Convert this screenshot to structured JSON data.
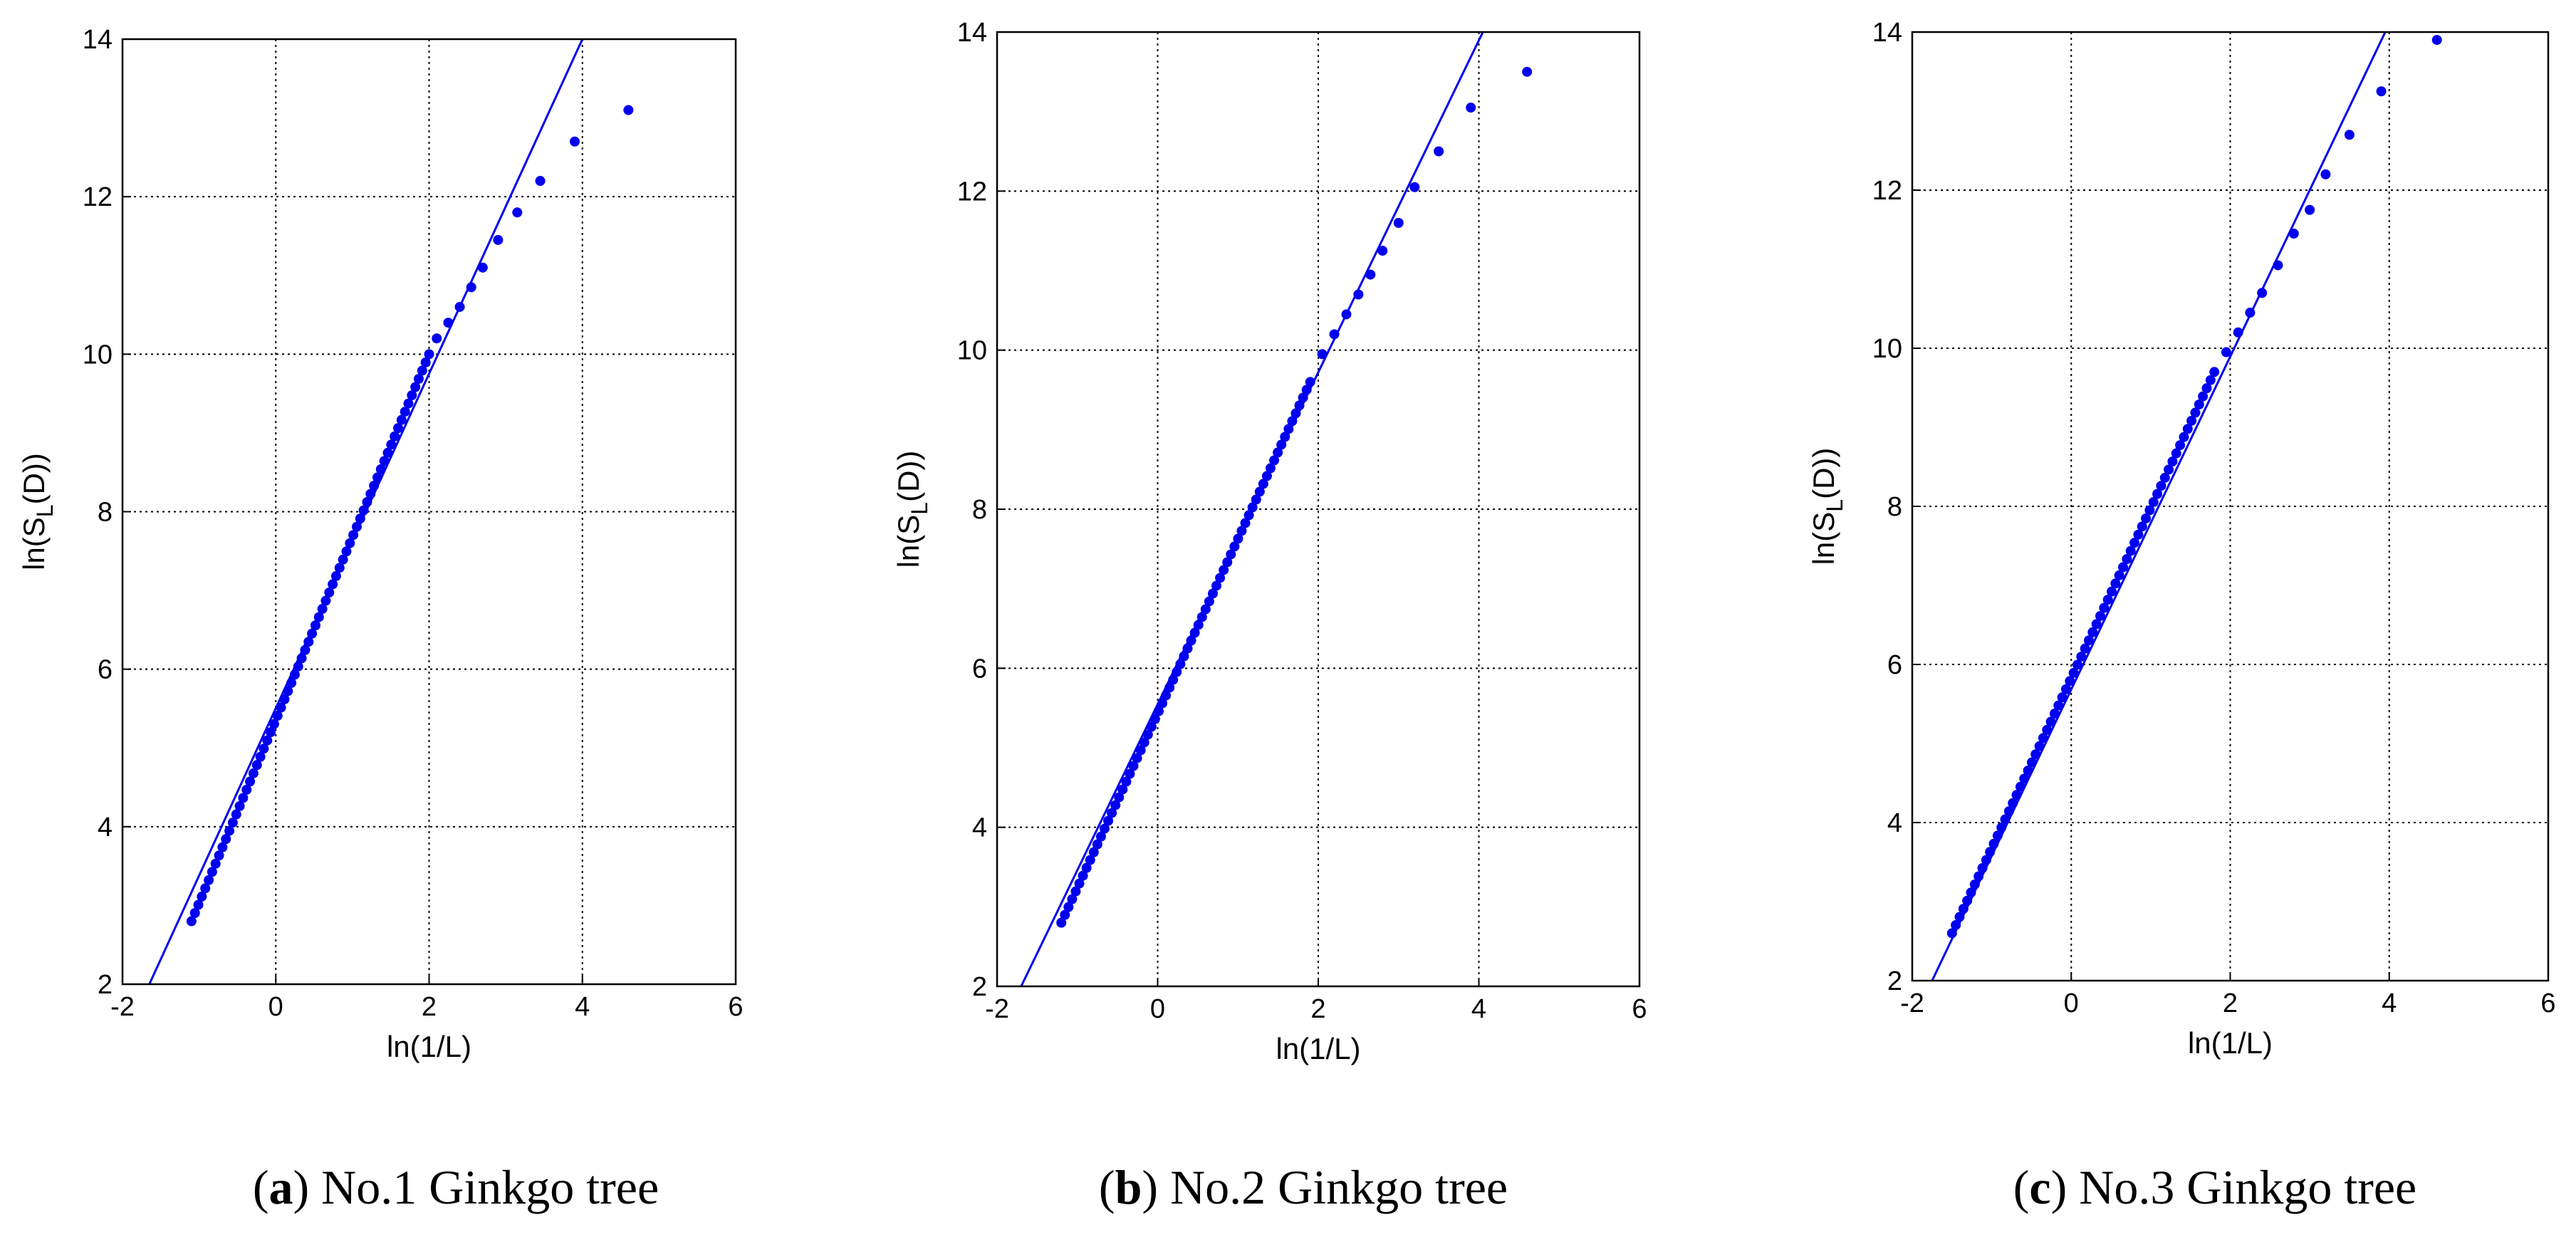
{
  "chart_data": [
    {
      "type": "scatter",
      "caption_letter": "a",
      "caption_text": "No.1 Ginkgo tree",
      "xlabel": "ln(1/L)",
      "ylabel_main": "ln(S",
      "ylabel_sub": "L",
      "ylabel_tail": "(D))",
      "xlim": [
        -2,
        6
      ],
      "ylim": [
        2,
        14
      ],
      "xticks": [
        "-2",
        "0",
        "2",
        "4",
        "6"
      ],
      "yticks": [
        "2",
        "4",
        "6",
        "8",
        "10",
        "12",
        "14"
      ],
      "grid": true,
      "color": "#0000ee",
      "fit_line": {
        "x0": -1.65,
        "y0": 2.0,
        "x1": 4.0,
        "y1": 14.0
      },
      "points_dense": {
        "x_start": -1.1,
        "x_end": 2.0,
        "y_start": 2.8,
        "y_end": 10.0,
        "count": 70
      },
      "points_sparse": [
        [
          2.1,
          10.2
        ],
        [
          2.25,
          10.4
        ],
        [
          2.4,
          10.6
        ],
        [
          2.55,
          10.85
        ],
        [
          2.7,
          11.1
        ],
        [
          2.9,
          11.45
        ],
        [
          3.15,
          11.8
        ],
        [
          3.45,
          12.2
        ],
        [
          3.9,
          12.7
        ],
        [
          4.6,
          13.1
        ]
      ]
    },
    {
      "type": "scatter",
      "caption_letter": "b",
      "caption_text": "No.2 Ginkgo tree",
      "xlabel": "ln(1/L)",
      "ylabel_main": "ln(S",
      "ylabel_sub": "L",
      "ylabel_tail": "(D))",
      "xlim": [
        -2,
        6
      ],
      "ylim": [
        2,
        14
      ],
      "xticks": [
        "-2",
        "0",
        "2",
        "4",
        "6"
      ],
      "yticks": [
        "2",
        "4",
        "6",
        "8",
        "10",
        "12",
        "14"
      ],
      "grid": true,
      "color": "#0000ee",
      "fit_line": {
        "x0": -1.7,
        "y0": 2.0,
        "x1": 4.05,
        "y1": 14.0
      },
      "points_dense": {
        "x_start": -1.2,
        "x_end": 1.9,
        "y_start": 2.8,
        "y_end": 9.6,
        "count": 70
      },
      "points_sparse": [
        [
          2.05,
          9.95
        ],
        [
          2.2,
          10.2
        ],
        [
          2.35,
          10.45
        ],
        [
          2.5,
          10.7
        ],
        [
          2.65,
          10.95
        ],
        [
          2.8,
          11.25
        ],
        [
          3.0,
          11.6
        ],
        [
          3.2,
          12.05
        ],
        [
          3.5,
          12.5
        ],
        [
          3.9,
          13.05
        ],
        [
          4.6,
          13.5
        ]
      ]
    },
    {
      "type": "scatter",
      "caption_letter": "c",
      "caption_text": "No.3 Ginkgo tree",
      "xlabel": "ln(1/L)",
      "ylabel_main": "ln(S",
      "ylabel_sub": "L",
      "ylabel_tail": "(D))",
      "xlim": [
        -2,
        6
      ],
      "ylim": [
        2,
        14
      ],
      "xticks": [
        "-2",
        "0",
        "2",
        "4",
        "6"
      ],
      "yticks": [
        "2",
        "4",
        "6",
        "8",
        "10",
        "12",
        "14"
      ],
      "grid": true,
      "color": "#0000ee",
      "fit_line": {
        "x0": -1.75,
        "y0": 2.0,
        "x1": 3.95,
        "y1": 14.0
      },
      "points_dense": {
        "x_start": -1.5,
        "x_end": 1.8,
        "y_start": 2.6,
        "y_end": 9.7,
        "count": 70
      },
      "points_sparse": [
        [
          1.95,
          9.95
        ],
        [
          2.1,
          10.2
        ],
        [
          2.25,
          10.45
        ],
        [
          2.4,
          10.7
        ],
        [
          2.6,
          11.05
        ],
        [
          2.8,
          11.45
        ],
        [
          3.0,
          11.75
        ],
        [
          3.2,
          12.2
        ],
        [
          3.5,
          12.7
        ],
        [
          3.9,
          13.25
        ],
        [
          4.6,
          13.9
        ]
      ]
    }
  ]
}
